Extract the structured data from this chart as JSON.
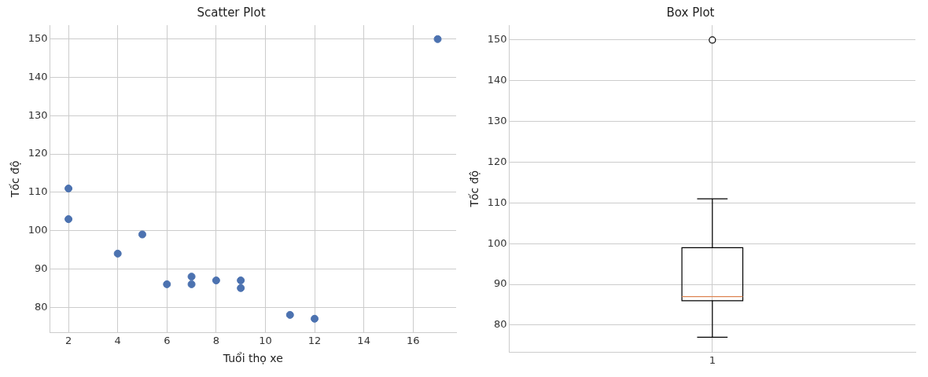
{
  "chart_data": [
    {
      "type": "scatter",
      "title": "Scatter Plot",
      "xlabel": "Tuổi thọ xe",
      "ylabel": "Tốc độ",
      "x": [
        5,
        7,
        8,
        7,
        2,
        17,
        2,
        9,
        4,
        11,
        12,
        9,
        6
      ],
      "values": [
        99,
        86,
        87,
        88,
        111,
        150,
        103,
        87,
        94,
        78,
        77,
        85,
        86
      ],
      "color": "#4c72b0",
      "marker": "circle",
      "xlim": [
        1.25,
        17.75
      ],
      "xticks": [
        2,
        4,
        6,
        8,
        10,
        12,
        14,
        16
      ],
      "ylim": [
        73.35,
        153.65
      ],
      "yticks": [
        80,
        90,
        100,
        110,
        120,
        130,
        140,
        150
      ],
      "grid": true
    },
    {
      "type": "box",
      "title": "Box Plot",
      "ylabel": "Tốc độ",
      "categories": [
        "1"
      ],
      "color": "#000000",
      "boxes": [
        {
          "low": 77,
          "q1": 86,
          "median": 87,
          "q3": 99,
          "high": 111,
          "outliers": [
            150
          ]
        }
      ],
      "ylim": [
        73.35,
        153.65
      ],
      "yticks": [
        80,
        90,
        100,
        110,
        120,
        130,
        140,
        150
      ],
      "grid": true
    }
  ]
}
